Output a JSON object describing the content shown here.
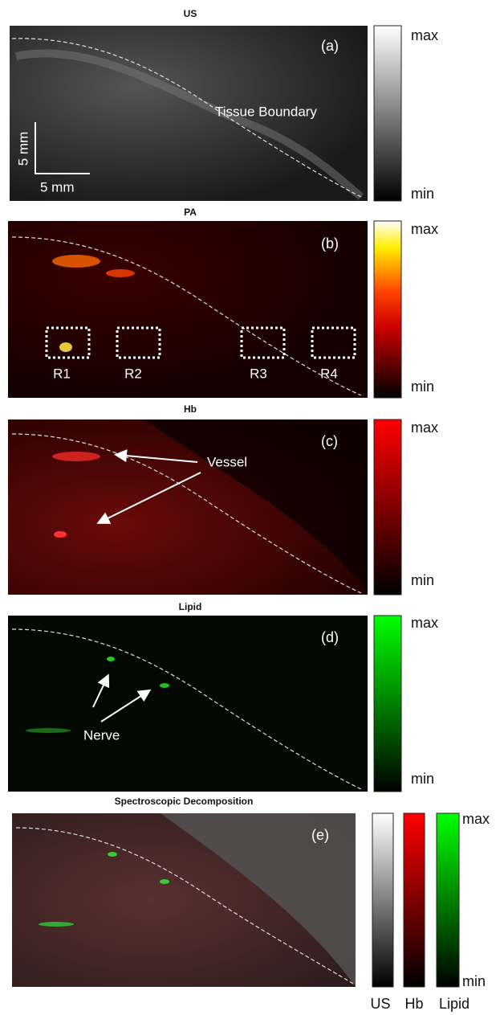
{
  "panels": [
    {
      "title": "US",
      "label": "(a)",
      "annotations": [
        "Tissue Boundary",
        "5 mm",
        "5 mm"
      ],
      "colorbar": {
        "max": "max",
        "min": "min"
      }
    },
    {
      "title": "PA",
      "label": "(b)",
      "annotations": [
        "R1",
        "R2",
        "R3",
        "R4"
      ],
      "colorbar": {
        "max": "max",
        "min": "min"
      }
    },
    {
      "title": "Hb",
      "label": "(c)",
      "annotations": [
        "Vessel"
      ],
      "colorbar": {
        "max": "max",
        "min": "min"
      }
    },
    {
      "title": "Lipid",
      "label": "(d)",
      "annotations": [
        "Nerve"
      ],
      "colorbar": {
        "max": "max",
        "min": "min"
      }
    },
    {
      "title": "Spectroscopic Decomposition",
      "label": "(e)",
      "colorbar": {
        "max": "max",
        "min": "min",
        "names": [
          "US",
          "Hb",
          "Lipid"
        ]
      }
    }
  ]
}
